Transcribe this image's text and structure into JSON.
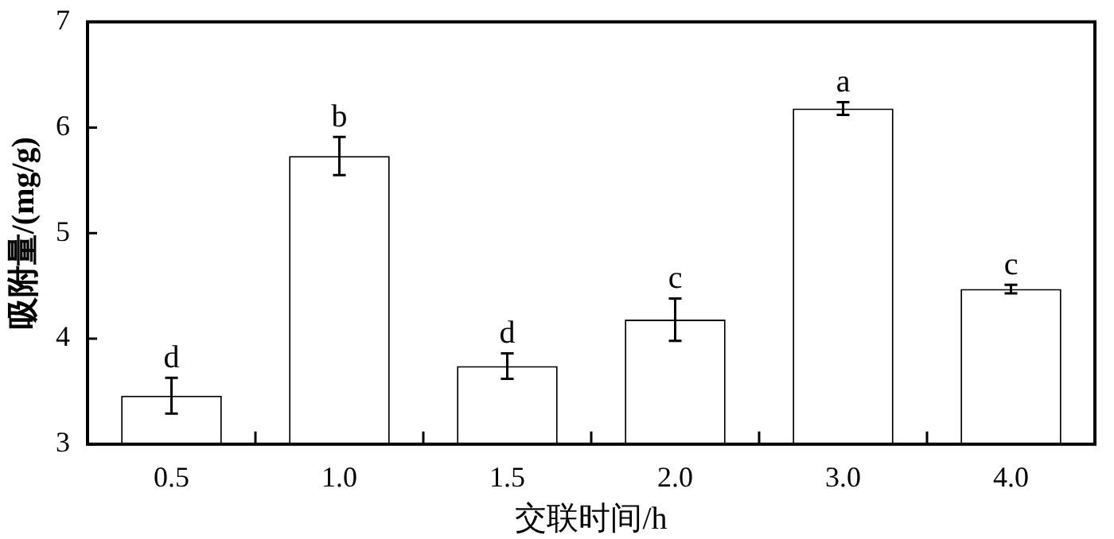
{
  "chart_data": {
    "type": "bar",
    "xlabel": "交联时间/h",
    "ylabel": "吸附量/(mg/g)",
    "categories": [
      "0.5",
      "1.0",
      "1.5",
      "2.0",
      "3.0",
      "4.0"
    ],
    "values": [
      3.46,
      5.73,
      3.74,
      4.18,
      6.18,
      4.47
    ],
    "errors": [
      0.17,
      0.18,
      0.12,
      0.2,
      0.06,
      0.04
    ],
    "color": "#ffffff",
    "ylim": [
      3,
      7
    ],
    "yticks": [
      3,
      4,
      5,
      6,
      7
    ],
    "grid": false,
    "legend": false,
    "annotations": [
      {
        "text": "d",
        "x": "0.5",
        "y": 3.46
      },
      {
        "text": "b",
        "x": "1.0",
        "y": 5.73
      },
      {
        "text": "d",
        "x": "1.5",
        "y": 3.74
      },
      {
        "text": "c",
        "x": "2.0",
        "y": 4.18
      },
      {
        "text": "a",
        "x": "3.0",
        "y": 6.18
      },
      {
        "text": "c",
        "x": "4.0",
        "y": 4.47
      }
    ]
  }
}
